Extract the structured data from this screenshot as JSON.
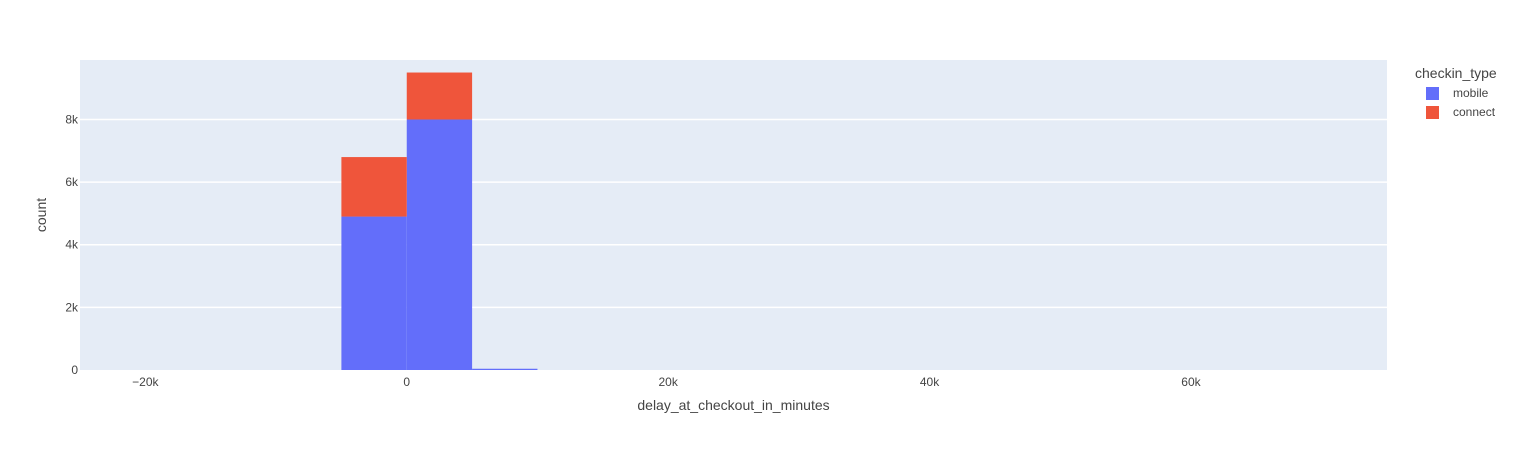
{
  "chart_data": {
    "type": "bar",
    "barmode": "stack",
    "xlabel": "delay_at_checkout_in_minutes",
    "ylabel": "count",
    "xlim": [
      -25000,
      75000
    ],
    "ylim": [
      0,
      9900
    ],
    "x_ticks": [
      {
        "value": -20000,
        "label": "−20k"
      },
      {
        "value": 0,
        "label": "0"
      },
      {
        "value": 20000,
        "label": "20k"
      },
      {
        "value": 40000,
        "label": "40k"
      },
      {
        "value": 60000,
        "label": "60k"
      }
    ],
    "y_ticks": [
      {
        "value": 0,
        "label": "0"
      },
      {
        "value": 2000,
        "label": "2k"
      },
      {
        "value": 4000,
        "label": "4k"
      },
      {
        "value": 6000,
        "label": "6k"
      },
      {
        "value": 8000,
        "label": "8k"
      }
    ],
    "bins": [
      {
        "x0": -5000,
        "x1": 0
      },
      {
        "x0": 0,
        "x1": 5000
      },
      {
        "x0": 5000,
        "x1": 10000
      }
    ],
    "series": [
      {
        "name": "mobile",
        "color": "#636efa",
        "values": [
          4900,
          8000,
          40
        ]
      },
      {
        "name": "connect",
        "color": "#ef553b",
        "values": [
          1900,
          1500,
          0
        ]
      }
    ],
    "legend": {
      "title": "checkin_type",
      "position": "top-right"
    },
    "grid": true,
    "plot_background": "#e5ecf6"
  }
}
